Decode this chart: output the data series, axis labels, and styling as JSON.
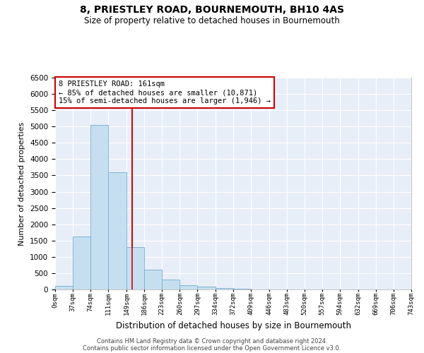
{
  "title": "8, PRIESTLEY ROAD, BOURNEMOUTH, BH10 4AS",
  "subtitle": "Size of property relative to detached houses in Bournemouth",
  "xlabel": "Distribution of detached houses by size in Bournemouth",
  "ylabel": "Number of detached properties",
  "footer_line1": "Contains HM Land Registry data © Crown copyright and database right 2024.",
  "footer_line2": "Contains public sector information licensed under the Open Government Licence v3.0.",
  "annotation_line1": "8 PRIESTLEY ROAD: 161sqm",
  "annotation_line2": "← 85% of detached houses are smaller (10,871)",
  "annotation_line3": "15% of semi-detached houses are larger (1,946) →",
  "bar_values": [
    100,
    1620,
    5050,
    3600,
    1300,
    600,
    300,
    130,
    80,
    50,
    30,
    10,
    5,
    3,
    2,
    1,
    1,
    1,
    1,
    1
  ],
  "bin_edges": [
    0,
    37,
    74,
    111,
    149,
    186,
    223,
    260,
    297,
    334,
    372,
    409,
    446,
    483,
    520,
    557,
    594,
    632,
    669,
    706,
    743
  ],
  "red_line_x": 161,
  "bar_color": "#c6dff0",
  "bar_edge_color": "#7bafd4",
  "red_line_color": "#cc0000",
  "background_color": "#e8eef8",
  "grid_color": "#ffffff",
  "ylim": [
    0,
    6500
  ],
  "yticks": [
    0,
    500,
    1000,
    1500,
    2000,
    2500,
    3000,
    3500,
    4000,
    4500,
    5000,
    5500,
    6000,
    6500
  ]
}
